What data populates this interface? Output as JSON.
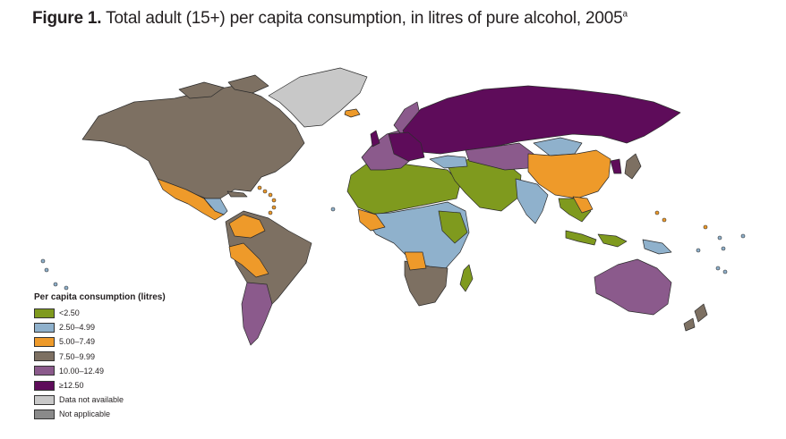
{
  "title": {
    "figure_label": "Figure 1.",
    "text": "Total adult (15+) per capita consumption, in litres of pure alcohol, 2005",
    "superscript": "a"
  },
  "colors": {
    "lt_2_50": "#7f9a1e",
    "c2_50_4_99": "#8fb1cc",
    "c5_00_7_49": "#ee9a2a",
    "c7_50_9_99": "#7d7062",
    "c10_00_12_49": "#8b5a8c",
    "ge_12_50": "#5e0c5a",
    "data_not_available": "#c8c8c8",
    "not_applicable": "#8a8a8a",
    "border": "#2b2b2b"
  },
  "legend": {
    "title": "Per capita consumption (litres)",
    "items": [
      {
        "label": "<2.50",
        "color": "#7f9a1e"
      },
      {
        "label": "2.50–4.99",
        "color": "#8fb1cc"
      },
      {
        "label": "5.00–7.49",
        "color": "#ee9a2a"
      },
      {
        "label": "7.50–9.99",
        "color": "#7d7062"
      },
      {
        "label": "10.00–12.49",
        "color": "#8b5a8c"
      },
      {
        "label": "≥12.50",
        "color": "#5e0c5a"
      },
      {
        "label": "Data not available",
        "color": "#c8c8c8"
      },
      {
        "label": "Not applicable",
        "color": "#8a8a8a"
      }
    ]
  },
  "regions": [
    {
      "name": "Greenland",
      "category": "data_not_available"
    },
    {
      "name": "North America",
      "category": "c7_50_9_99"
    },
    {
      "name": "Mexico & Central America",
      "category": "c5_00_7_49"
    },
    {
      "name": "South America (north)",
      "category": "c7_50_9_99"
    },
    {
      "name": "Argentina/Chile",
      "category": "c10_00_12_49"
    },
    {
      "name": "North Africa & Middle East",
      "category": "lt_2_50"
    },
    {
      "name": "Sub-Saharan Africa",
      "category": "c2_50_4_99"
    },
    {
      "name": "Southern Africa",
      "category": "c7_50_9_99"
    },
    {
      "name": "Western Europe",
      "category": "c10_00_12_49"
    },
    {
      "name": "Eastern Europe & Russia",
      "category": "ge_12_50"
    },
    {
      "name": "Central Asia",
      "category": "c10_00_12_49"
    },
    {
      "name": "China",
      "category": "c5_00_7_49"
    },
    {
      "name": "India",
      "category": "c2_50_4_99"
    },
    {
      "name": "Southeast Asia",
      "category": "lt_2_50"
    },
    {
      "name": "Australia",
      "category": "c10_00_12_49"
    },
    {
      "name": "New Zealand",
      "category": "c7_50_9_99"
    },
    {
      "name": "Japan",
      "category": "c7_50_9_99"
    }
  ]
}
